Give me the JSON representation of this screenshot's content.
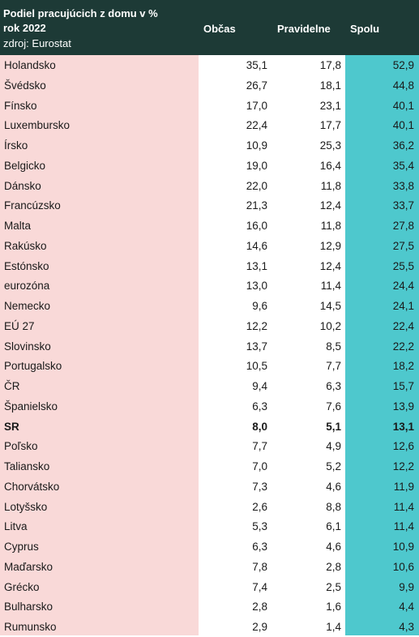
{
  "header": {
    "title_line1": "Podiel pracujúcich z domu v %",
    "title_line2": "rok 2022",
    "source": "zdroj: Eurostat",
    "col_obcas": "Občas",
    "col_pravidelne": "Pravidelne",
    "col_spolu": "Spolu"
  },
  "colors": {
    "header_bg": "#1d3a36",
    "country_col_bg": "#f9d9d8",
    "total_col_bg": "#4ec8cd"
  },
  "chart_data": {
    "type": "table",
    "columns": [
      "Občas",
      "Pravidelne",
      "Spolu"
    ],
    "highlighted_row": "SR",
    "rows": [
      {
        "name": "Holandsko",
        "obcas": "35,1",
        "pravidelne": "17,8",
        "spolu": "52,9"
      },
      {
        "name": "Švédsko",
        "obcas": "26,7",
        "pravidelne": "18,1",
        "spolu": "44,8"
      },
      {
        "name": "Fínsko",
        "obcas": "17,0",
        "pravidelne": "23,1",
        "spolu": "40,1"
      },
      {
        "name": "Luxembursko",
        "obcas": "22,4",
        "pravidelne": "17,7",
        "spolu": "40,1"
      },
      {
        "name": "Írsko",
        "obcas": "10,9",
        "pravidelne": "25,3",
        "spolu": "36,2"
      },
      {
        "name": "Belgicko",
        "obcas": "19,0",
        "pravidelne": "16,4",
        "spolu": "35,4"
      },
      {
        "name": "Dánsko",
        "obcas": "22,0",
        "pravidelne": "11,8",
        "spolu": "33,8"
      },
      {
        "name": "Francúzsko",
        "obcas": "21,3",
        "pravidelne": "12,4",
        "spolu": "33,7"
      },
      {
        "name": "Malta",
        "obcas": "16,0",
        "pravidelne": "11,8",
        "spolu": "27,8"
      },
      {
        "name": "Rakúsko",
        "obcas": "14,6",
        "pravidelne": "12,9",
        "spolu": "27,5"
      },
      {
        "name": "Estónsko",
        "obcas": "13,1",
        "pravidelne": "12,4",
        "spolu": "25,5"
      },
      {
        "name": "eurozóna",
        "obcas": "13,0",
        "pravidelne": "11,4",
        "spolu": "24,4"
      },
      {
        "name": "Nemecko",
        "obcas": "9,6",
        "pravidelne": "14,5",
        "spolu": "24,1"
      },
      {
        "name": "EÚ 27",
        "obcas": "12,2",
        "pravidelne": "10,2",
        "spolu": "22,4"
      },
      {
        "name": "Slovinsko",
        "obcas": "13,7",
        "pravidelne": "8,5",
        "spolu": "22,2"
      },
      {
        "name": "Portugalsko",
        "obcas": "10,5",
        "pravidelne": "7,7",
        "spolu": "18,2"
      },
      {
        "name": "ČR",
        "obcas": "9,4",
        "pravidelne": "6,3",
        "spolu": "15,7"
      },
      {
        "name": "Španielsko",
        "obcas": "6,3",
        "pravidelne": "7,6",
        "spolu": "13,9"
      },
      {
        "name": "SR",
        "obcas": "8,0",
        "pravidelne": "5,1",
        "spolu": "13,1"
      },
      {
        "name": "Poľsko",
        "obcas": "7,7",
        "pravidelne": "4,9",
        "spolu": "12,6"
      },
      {
        "name": "Taliansko",
        "obcas": "7,0",
        "pravidelne": "5,2",
        "spolu": "12,2"
      },
      {
        "name": "Chorvátsko",
        "obcas": "7,3",
        "pravidelne": "4,6",
        "spolu": "11,9"
      },
      {
        "name": "Lotyšsko",
        "obcas": "2,6",
        "pravidelne": "8,8",
        "spolu": "11,4"
      },
      {
        "name": "Litva",
        "obcas": "5,3",
        "pravidelne": "6,1",
        "spolu": "11,4"
      },
      {
        "name": "Cyprus",
        "obcas": "6,3",
        "pravidelne": "4,6",
        "spolu": "10,9"
      },
      {
        "name": "Maďarsko",
        "obcas": "7,8",
        "pravidelne": "2,8",
        "spolu": "10,6"
      },
      {
        "name": "Grécko",
        "obcas": "7,4",
        "pravidelne": "2,5",
        "spolu": "9,9"
      },
      {
        "name": "Bulharsko",
        "obcas": "2,8",
        "pravidelne": "1,6",
        "spolu": "4,4"
      },
      {
        "name": "Rumunsko",
        "obcas": "2,9",
        "pravidelne": "1,4",
        "spolu": "4,3"
      }
    ]
  }
}
